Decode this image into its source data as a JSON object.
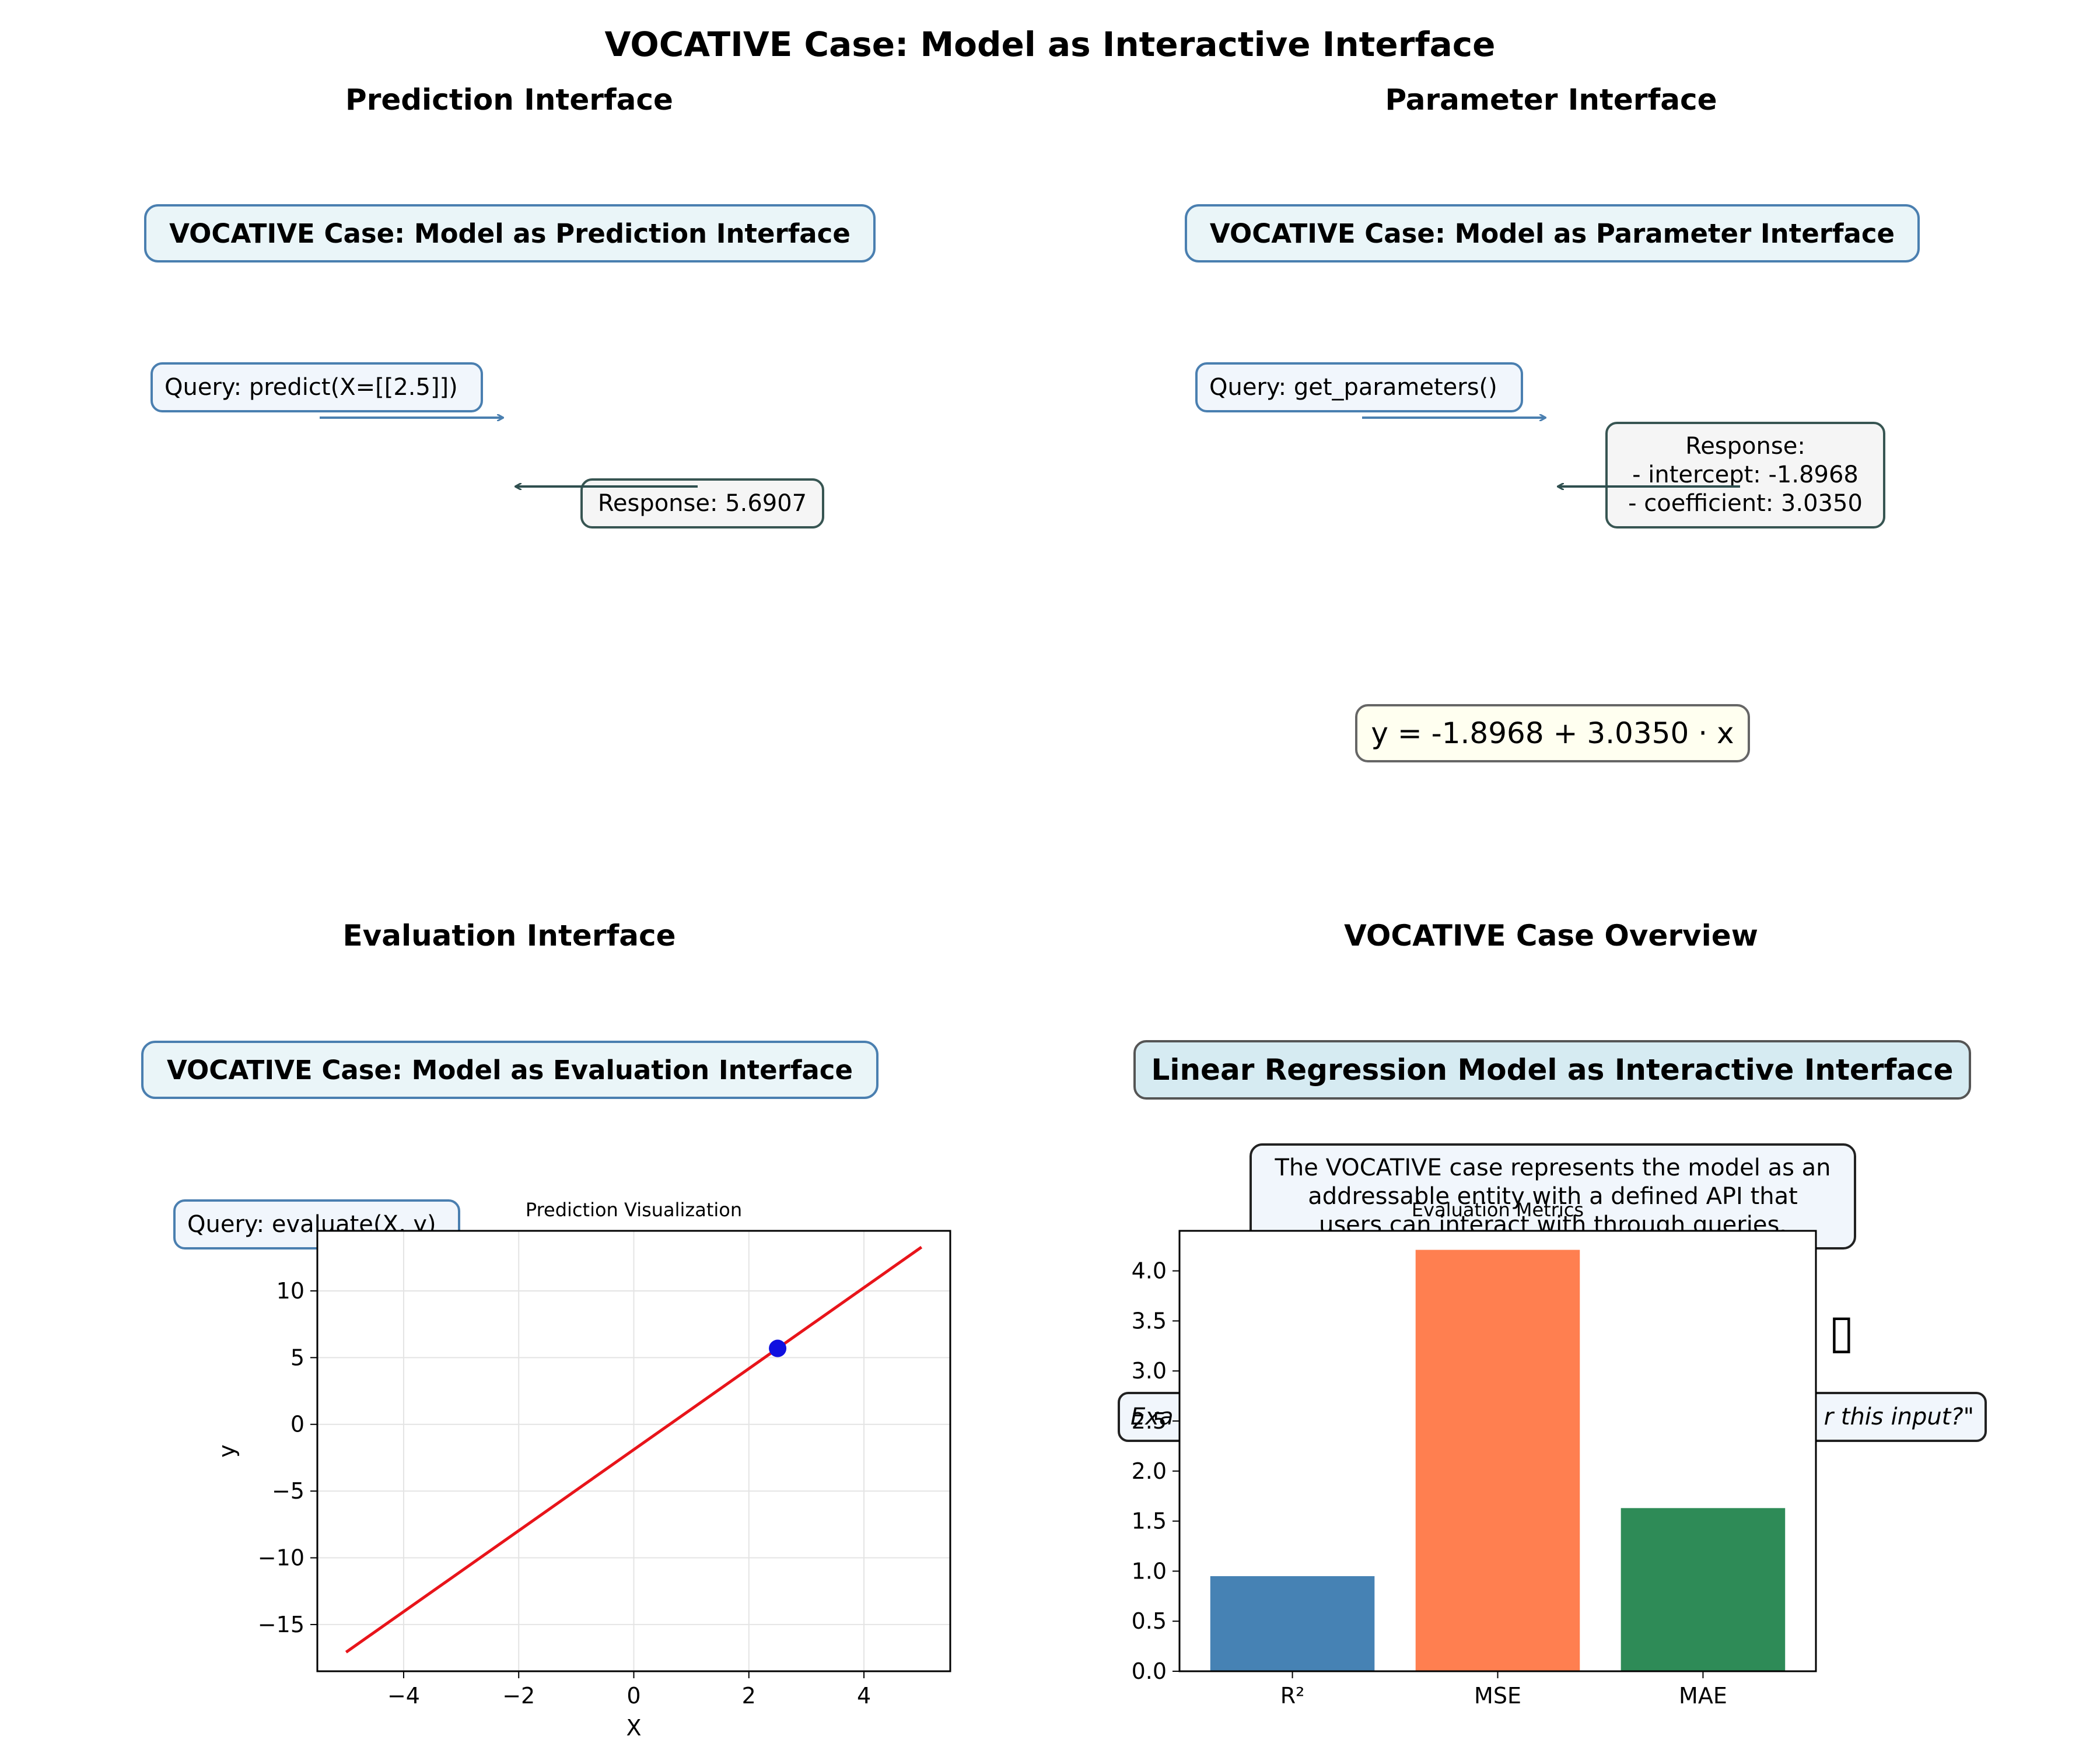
{
  "figure_title": "VOCATIVE Case: Model as Interactive Interface",
  "panels": {
    "prediction": {
      "title": "Prediction Interface",
      "header": "VOCATIVE Case: Model as Prediction Interface",
      "query": "Query: predict(X=[[2.5]])",
      "response": "Response: 5.6907"
    },
    "parameter": {
      "title": "Parameter Interface",
      "header": "VOCATIVE Case: Model as Parameter Interface",
      "query": "Query: get_parameters()",
      "response_lines": [
        "Response:",
        "- intercept: -1.8968",
        "- coefficient: 3.0350"
      ],
      "equation": "y = -1.8968 + 3.0350 · x"
    },
    "evaluation": {
      "title": "Evaluation Interface",
      "header": "VOCATIVE Case: Model as Evaluation Interface",
      "query": "Query: evaluate(X, y)"
    },
    "overview": {
      "title": "VOCATIVE Case Overview",
      "header": "Linear Regression Model as Interactive Interface",
      "description_lines": [
        "The VOCATIVE case represents the model as an",
        "addressable entity with a defined API that",
        "users can interact with through queries."
      ],
      "example_left": "Exa",
      "example_right": "r this input?\"",
      "glyph": "▯"
    }
  },
  "colors": {
    "line": "#e8141a",
    "point": "#1010e0",
    "bar_r2": "#4682b4",
    "bar_mse": "#ff7f50",
    "bar_mae": "#2e8b57",
    "query_arrow": "#4a7fb0",
    "response_arrow": "#2f4f4f"
  },
  "chart_data": [
    {
      "type": "line",
      "title": "Prediction Visualization",
      "xlabel": "X",
      "ylabel": "y",
      "xlim": [
        -5.5,
        5.5
      ],
      "ylim": [
        -18.5,
        14.5
      ],
      "xticks": [
        -4,
        -2,
        0,
        2,
        4
      ],
      "yticks": [
        -15,
        -10,
        -5,
        0,
        5,
        10
      ],
      "xtick_labels": [
        "−4",
        "−2",
        "0",
        "2",
        "4"
      ],
      "ytick_labels": [
        "−15",
        "−10",
        "−5",
        "0",
        "5",
        "10"
      ],
      "grid": true,
      "series": [
        {
          "type": "line",
          "x": [
            -5,
            5
          ],
          "y": [
            -17.07,
            13.28
          ]
        },
        {
          "type": "scatter",
          "x": [
            2.5
          ],
          "y": [
            5.6907
          ]
        }
      ]
    },
    {
      "type": "bar",
      "title": "Evaluation Metrics",
      "categories": [
        "R²",
        "MSE",
        "MAE"
      ],
      "values": [
        0.95,
        4.21,
        1.63
      ],
      "ylim": [
        0,
        4.4
      ],
      "yticks": [
        0,
        0.5,
        1,
        1.5,
        2,
        2.5,
        3,
        3.5,
        4
      ],
      "ytick_labels": [
        "0.0",
        "0.5",
        "1.0",
        "1.5",
        "2.0",
        "2.5",
        "3.0",
        "3.5",
        "4.0"
      ],
      "grid": false
    }
  ]
}
